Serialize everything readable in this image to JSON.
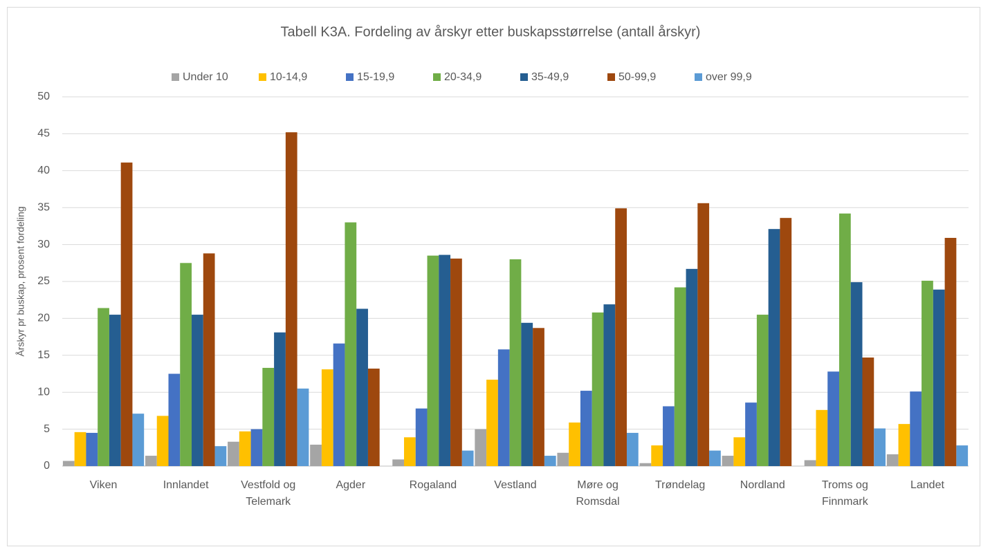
{
  "chart_data": {
    "type": "bar",
    "title": "Tabell K3A.  Fordeling av årskyr etter buskapsstørrelse (antall årskyr)",
    "y_label": "Årskyr pr buskap, prosent fordeling",
    "categories": [
      "Viken",
      "Innlandet",
      "Vestfold og Telemark",
      "Agder",
      "Rogaland",
      "Vestland",
      "Møre og Romsdal",
      "Trøndelag",
      "Nordland",
      "Troms og Finnmark",
      "Landet"
    ],
    "series": [
      {
        "name": "Under 10",
        "color": "#a5a5a5",
        "values": [
          0.7,
          1.4,
          3.3,
          2.9,
          0.9,
          5.0,
          1.8,
          0.4,
          1.4,
          0.8,
          1.6
        ]
      },
      {
        "name": "10-14,9",
        "color": "#ffc000",
        "values": [
          4.6,
          6.8,
          4.7,
          13.1,
          3.9,
          11.7,
          5.9,
          2.8,
          3.9,
          7.6,
          5.7
        ]
      },
      {
        "name": "15-19,9",
        "color": "#4472c4",
        "values": [
          4.5,
          12.5,
          5.0,
          16.6,
          7.8,
          15.8,
          10.2,
          8.1,
          8.6,
          12.8,
          10.1
        ]
      },
      {
        "name": "20-34,9",
        "color": "#70ad47",
        "values": [
          21.4,
          27.5,
          13.3,
          33.0,
          28.5,
          28.0,
          20.8,
          24.2,
          20.5,
          34.2,
          25.1
        ]
      },
      {
        "name": "35-49,9",
        "color": "#255e91",
        "values": [
          20.5,
          20.5,
          18.1,
          21.3,
          28.6,
          19.4,
          21.9,
          26.7,
          32.1,
          24.9,
          23.9
        ]
      },
      {
        "name": "50-99,9",
        "color": "#9e480e",
        "values": [
          41.1,
          28.8,
          45.2,
          13.2,
          28.1,
          18.7,
          34.9,
          35.6,
          33.6,
          14.7,
          30.9
        ]
      },
      {
        "name": "over 99,9",
        "color": "#5b9bd5",
        "values": [
          7.1,
          2.7,
          10.5,
          0,
          2.1,
          1.4,
          4.5,
          2.1,
          0,
          5.1,
          2.8
        ]
      }
    ],
    "ylim": [
      0,
      50
    ],
    "yticks": [
      0,
      5,
      10,
      15,
      20,
      25,
      30,
      35,
      40,
      45,
      50
    ],
    "grid": true,
    "legend": "top"
  }
}
